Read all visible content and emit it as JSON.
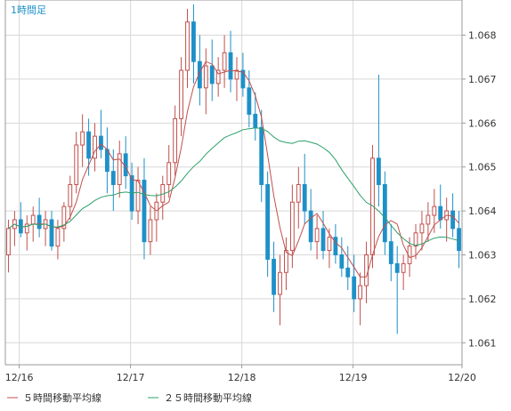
{
  "chart_data": {
    "type": "candlestick",
    "timeframe_label": "1時間足",
    "yticks": [
      "1.068",
      "1.067",
      "1.066",
      "1.065",
      "1.064",
      "1.063",
      "1.062",
      "1.061"
    ],
    "xticks": [
      "12/16",
      "12/17",
      "12/18",
      "12/19",
      "12/20"
    ],
    "ylim": [
      1.0605,
      1.0688
    ],
    "grid": true,
    "legend": [
      {
        "name": "５時間移動平均線",
        "color": "#c0504d"
      },
      {
        "name": "２５時間移動平均線",
        "color": "#2ca06a"
      }
    ],
    "colors": {
      "up": "#c0504d",
      "down": "#1e90c8",
      "frame": "#9a9a9a",
      "grid": "#d8d8d8",
      "timeframe": "#1e90c8"
    },
    "candles": [
      [
        1.063,
        1.0638,
        1.0626,
        1.0636
      ],
      [
        1.0636,
        1.064,
        1.0632,
        1.0638
      ],
      [
        1.0638,
        1.0642,
        1.0634,
        1.0635
      ],
      [
        1.0635,
        1.0639,
        1.0631,
        1.0637
      ],
      [
        1.0637,
        1.0641,
        1.0633,
        1.0639
      ],
      [
        1.0639,
        1.0643,
        1.0634,
        1.0636
      ],
      [
        1.0636,
        1.064,
        1.0632,
        1.0638
      ],
      [
        1.0638,
        1.064,
        1.0631,
        1.0632
      ],
      [
        1.0632,
        1.0638,
        1.0629,
        1.0636
      ],
      [
        1.0636,
        1.0642,
        1.0633,
        1.0641
      ],
      [
        1.0641,
        1.0648,
        1.0638,
        1.0646
      ],
      [
        1.0646,
        1.0658,
        1.0644,
        1.0655
      ],
      [
        1.0655,
        1.0662,
        1.065,
        1.0658
      ],
      [
        1.0658,
        1.0661,
        1.0648,
        1.0652
      ],
      [
        1.0652,
        1.066,
        1.0649,
        1.0657
      ],
      [
        1.0657,
        1.0663,
        1.0652,
        1.0654
      ],
      [
        1.0654,
        1.0659,
        1.0644,
        1.0649
      ],
      [
        1.0649,
        1.0654,
        1.064,
        1.0646
      ],
      [
        1.0646,
        1.0656,
        1.0643,
        1.0653
      ],
      [
        1.0653,
        1.0657,
        1.0645,
        1.0648
      ],
      [
        1.0648,
        1.0651,
        1.0638,
        1.064
      ],
      [
        1.064,
        1.065,
        1.0637,
        1.0647
      ],
      [
        1.0647,
        1.0652,
        1.0629,
        1.0633
      ],
      [
        1.0633,
        1.0641,
        1.063,
        1.0638
      ],
      [
        1.0638,
        1.0644,
        1.0633,
        1.0642
      ],
      [
        1.0642,
        1.0648,
        1.0638,
        1.0646
      ],
      [
        1.0646,
        1.0655,
        1.0643,
        1.0651
      ],
      [
        1.0651,
        1.0664,
        1.0648,
        1.0661
      ],
      [
        1.0661,
        1.0675,
        1.0657,
        1.0672
      ],
      [
        1.0672,
        1.0686,
        1.0668,
        1.0683
      ],
      [
        1.0683,
        1.0687,
        1.0669,
        1.0674
      ],
      [
        1.0674,
        1.068,
        1.0664,
        1.0668
      ],
      [
        1.0668,
        1.0677,
        1.0662,
        1.0673
      ],
      [
        1.0673,
        1.0679,
        1.0665,
        1.0669
      ],
      [
        1.0669,
        1.0675,
        1.0666,
        1.0672
      ],
      [
        1.0672,
        1.068,
        1.0668,
        1.0676
      ],
      [
        1.0676,
        1.0681,
        1.0667,
        1.067
      ],
      [
        1.067,
        1.0675,
        1.0665,
        1.0672
      ],
      [
        1.0672,
        1.0676,
        1.0666,
        1.0668
      ],
      [
        1.0668,
        1.0672,
        1.0659,
        1.0662
      ],
      [
        1.0662,
        1.0667,
        1.0656,
        1.0659
      ],
      [
        1.0659,
        1.0663,
        1.0642,
        1.0646
      ],
      [
        1.0646,
        1.0649,
        1.0625,
        1.0629
      ],
      [
        1.0629,
        1.0633,
        1.0617,
        1.0621
      ],
      [
        1.0621,
        1.063,
        1.0614,
        1.0626
      ],
      [
        1.0626,
        1.0634,
        1.0622,
        1.0631
      ],
      [
        1.0631,
        1.0646,
        1.0627,
        1.0642
      ],
      [
        1.0642,
        1.065,
        1.0636,
        1.0646
      ],
      [
        1.0646,
        1.0653,
        1.0637,
        1.064
      ],
      [
        1.064,
        1.0645,
        1.0631,
        1.0633
      ],
      [
        1.0633,
        1.0639,
        1.0629,
        1.0636
      ],
      [
        1.0636,
        1.064,
        1.0629,
        1.0631
      ],
      [
        1.0631,
        1.0636,
        1.0627,
        1.0634
      ],
      [
        1.0634,
        1.0637,
        1.0628,
        1.063
      ],
      [
        1.063,
        1.0634,
        1.0625,
        1.0627
      ],
      [
        1.0627,
        1.0632,
        1.0622,
        1.0625
      ],
      [
        1.0625,
        1.063,
        1.0617,
        1.062
      ],
      [
        1.062,
        1.0626,
        1.0614,
        1.0623
      ],
      [
        1.0623,
        1.0633,
        1.0619,
        1.063
      ],
      [
        1.063,
        1.0655,
        1.0627,
        1.0652
      ],
      [
        1.0652,
        1.0671,
        1.0641,
        1.0646
      ],
      [
        1.0646,
        1.0649,
        1.063,
        1.0633
      ],
      [
        1.0633,
        1.0637,
        1.0624,
        1.0628
      ],
      [
        1.0628,
        1.0632,
        1.0612,
        1.0626
      ],
      [
        1.0626,
        1.063,
        1.0622,
        1.0628
      ],
      [
        1.0628,
        1.0634,
        1.0625,
        1.0632
      ],
      [
        1.0632,
        1.0637,
        1.0629,
        1.0635
      ],
      [
        1.0635,
        1.064,
        1.0631,
        1.0637
      ],
      [
        1.0637,
        1.0642,
        1.0633,
        1.0639
      ],
      [
        1.0639,
        1.0645,
        1.0635,
        1.0641
      ],
      [
        1.0641,
        1.0646,
        1.0636,
        1.0638
      ],
      [
        1.0638,
        1.0643,
        1.0633,
        1.064
      ],
      [
        1.064,
        1.0644,
        1.0634,
        1.0636
      ],
      [
        1.0636,
        1.064,
        1.0627,
        1.0631
      ]
    ]
  }
}
